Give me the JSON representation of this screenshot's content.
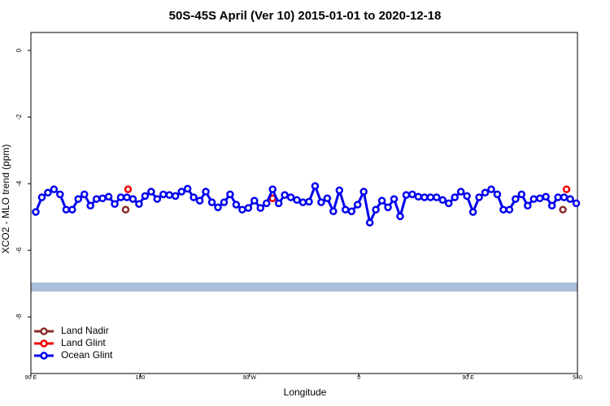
{
  "chart_data": {
    "type": "line",
    "title": "50S-45S April (Ver 10)   2015-01-01 to 2020-12-18",
    "x_label": "Longitude",
    "y_label": "XCO2 - MLO trend (ppm)",
    "xlim": [
      90,
      540
    ],
    "ylim": [
      -9.7,
      0.54
    ],
    "xticks": [
      {
        "value": 90,
        "label": "90 E"
      },
      180,
      {
        "value": 270,
        "label": "90 W"
      },
      {
        "value": 360,
        "label": "0"
      },
      {
        "value": 450,
        "label": "90 E"
      },
      540
    ],
    "yticks": [
      0,
      -2,
      -4,
      -6,
      -8
    ],
    "legend": "bottom-left",
    "series": [
      {
        "name": "Land Nadir",
        "color": "#8b2b2b",
        "x": [
          168,
          528
        ],
        "values": [
          -4.78,
          -4.78
        ]
      },
      {
        "name": "Land Glint",
        "color": "#ee0000",
        "x": [
          170,
          289,
          531
        ],
        "values": [
          -4.17,
          -4.44,
          -4.17
        ]
      },
      {
        "name": "Ocean Glint",
        "color": "#0000ee",
        "x": [
          94,
          99,
          104,
          109,
          114,
          119,
          124,
          129,
          134,
          139,
          144,
          149,
          154,
          159,
          164,
          169,
          174,
          179,
          184,
          189,
          194,
          199,
          204,
          209,
          214,
          219,
          224,
          229,
          234,
          239,
          244,
          249,
          254,
          259,
          264,
          269,
          274,
          279,
          284,
          289,
          294,
          299,
          304,
          309,
          314,
          319,
          324,
          329,
          334,
          339,
          344,
          349,
          354,
          359,
          364,
          369,
          374,
          379,
          384,
          389,
          394,
          399,
          404,
          409,
          414,
          419,
          424,
          429,
          434,
          439,
          444,
          449,
          454,
          459,
          464,
          469,
          474,
          479,
          484,
          489,
          494,
          499,
          504,
          509,
          514,
          519,
          524,
          529,
          534,
          539
        ],
        "values": [
          -4.85,
          -4.41,
          -4.27,
          -4.17,
          -4.32,
          -4.78,
          -4.78,
          -4.46,
          -4.32,
          -4.66,
          -4.46,
          -4.44,
          -4.39,
          -4.61,
          -4.41,
          -4.41,
          -4.46,
          -4.61,
          -4.37,
          -4.24,
          -4.46,
          -4.32,
          -4.34,
          -4.37,
          -4.24,
          -4.15,
          -4.41,
          -4.51,
          -4.24,
          -4.56,
          -4.71,
          -4.56,
          -4.32,
          -4.63,
          -4.78,
          -4.73,
          -4.51,
          -4.73,
          -4.59,
          -4.17,
          -4.59,
          -4.34,
          -4.41,
          -4.49,
          -4.56,
          -4.54,
          -4.07,
          -4.56,
          -4.44,
          -4.83,
          -4.2,
          -4.78,
          -4.83,
          -4.63,
          -4.24,
          -5.17,
          -4.78,
          -4.51,
          -4.71,
          -4.46,
          -4.98,
          -4.34,
          -4.32,
          -4.39,
          -4.41,
          -4.41,
          -4.41,
          -4.49,
          -4.59,
          -4.41,
          -4.24,
          -4.37,
          -4.85,
          -4.41,
          -4.27,
          -4.17,
          -4.32,
          -4.78,
          -4.78,
          -4.46,
          -4.32,
          -4.66,
          -4.46,
          -4.44,
          -4.39,
          -4.66,
          -4.41,
          -4.41,
          -4.46,
          -4.59
        ]
      }
    ]
  }
}
